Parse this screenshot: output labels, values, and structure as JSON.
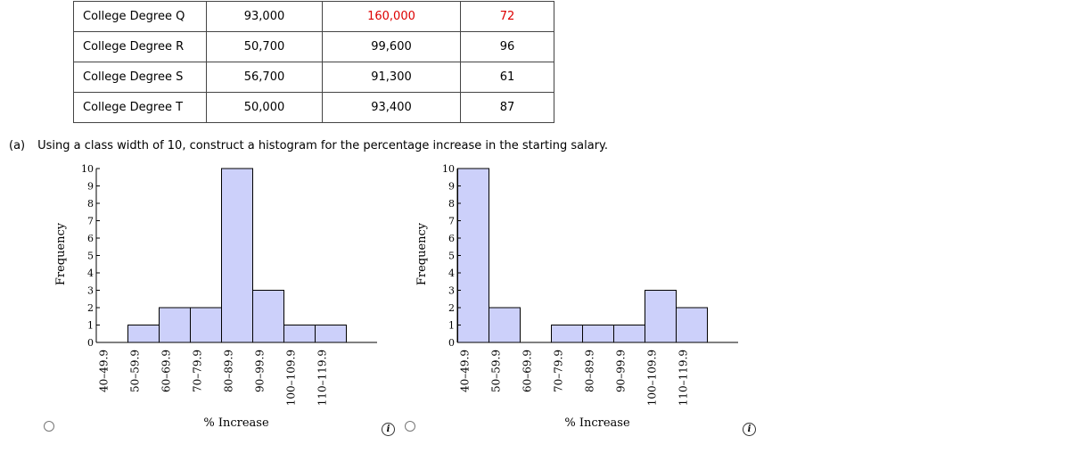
{
  "table": {
    "rows": [
      {
        "name": "College Degree Q",
        "col2": "93,000",
        "col3": "160,000",
        "col4": "72"
      },
      {
        "name": "College Degree R",
        "col2": "50,700",
        "col3": "99,600",
        "col4": "96"
      },
      {
        "name": "College Degree S",
        "col2": "56,700",
        "col3": "91,300",
        "col4": "61"
      },
      {
        "name": "College Degree T",
        "col2": "50,000",
        "col3": "93,400",
        "col4": "87"
      }
    ],
    "highlight_color": "#dd0000"
  },
  "question": {
    "part": "(a)",
    "text": "Using a class width of 10, construct a histogram for the percentage increase in the starting salary."
  },
  "chart_data": [
    {
      "type": "bar",
      "title": "",
      "xlabel": "% Increase",
      "ylabel": "Frequency",
      "ylim": [
        0,
        10
      ],
      "yticks": [
        "0",
        "1",
        "2",
        "3",
        "4",
        "5",
        "6",
        "7",
        "8",
        "9",
        "10"
      ],
      "categories": [
        "40–49.9",
        "50–59.9",
        "60–69.9",
        "70–79.9",
        "80–89.9",
        "90–99.9",
        "100–109.9",
        "110–119.9"
      ],
      "values": [
        0,
        1,
        2,
        2,
        10,
        3,
        1,
        1
      ],
      "bar_color": "#ccd0fa"
    },
    {
      "type": "bar",
      "title": "",
      "xlabel": "% Increase",
      "ylabel": "Frequency",
      "ylim": [
        0,
        10
      ],
      "yticks": [
        "0",
        "1",
        "2",
        "3",
        "4",
        "5",
        "6",
        "7",
        "8",
        "9",
        "10"
      ],
      "categories": [
        "40–49.9",
        "50–59.9",
        "60–69.9",
        "70–79.9",
        "80–89.9",
        "90–99.9",
        "100–109.9",
        "110–119.9"
      ],
      "values": [
        10,
        2,
        0,
        1,
        1,
        1,
        3,
        2
      ],
      "bar_color": "#ccd0fa"
    }
  ],
  "options": [
    {
      "radio_icon": "radio-button-icon",
      "info_icon": "info-icon",
      "info_symbol": "i"
    },
    {
      "radio_icon": "radio-button-icon",
      "info_icon": "info-icon",
      "info_symbol": "i"
    }
  ]
}
